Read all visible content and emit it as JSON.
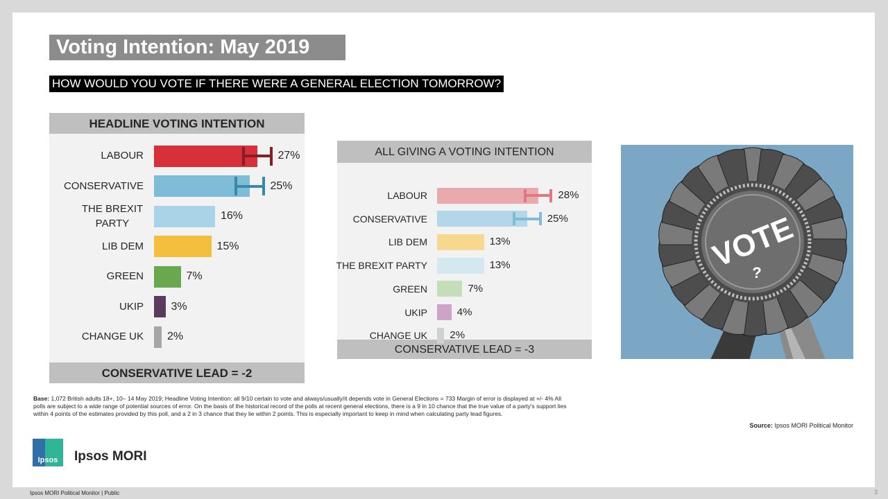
{
  "title": "Voting Intention: May 2019",
  "subtitle": "HOW WOULD YOU VOTE IF THERE WERE A GENERAL ELECTION TOMORROW?",
  "chart_data": [
    {
      "type": "bar",
      "orientation": "horizontal",
      "title": "HEADLINE VOTING INTENTION",
      "footer": "CONSERVATIVE LEAD = -2",
      "categories": [
        "LABOUR",
        "CONSERVATIVE",
        "THE BREXIT PARTY",
        "LIB DEM",
        "GREEN",
        "UKIP",
        "CHANGE UK"
      ],
      "values": [
        27,
        25,
        16,
        15,
        7,
        3,
        2
      ],
      "value_labels": [
        "27%",
        "25%",
        "16%",
        "15%",
        "7%",
        "3%",
        "2%"
      ],
      "colors": [
        "#d7303b",
        "#7fbcd8",
        "#a9d3e6",
        "#f4bf3f",
        "#6aa84f",
        "#5b3a5e",
        "#a6a6a6"
      ],
      "error_bars": [
        {
          "index": 0,
          "low": 23,
          "high": 31,
          "color": "#8a1c24"
        },
        {
          "index": 1,
          "low": 21,
          "high": 29,
          "color": "#3a88ad"
        }
      ],
      "xlim": [
        0,
        40
      ]
    },
    {
      "type": "bar",
      "orientation": "horizontal",
      "title": "ALL GIVING A VOTING INTENTION",
      "footer": "CONSERVATIVE LEAD = -3",
      "categories": [
        "LABOUR",
        "CONSERVATIVE",
        "LIB DEM",
        "THE BREXIT PARTY",
        "GREEN",
        "UKIP",
        "CHANGE UK"
      ],
      "values": [
        28,
        25,
        13,
        13,
        7,
        4,
        2
      ],
      "value_labels": [
        "28%",
        "25%",
        "13%",
        "13%",
        "7%",
        "4%",
        "2%"
      ],
      "colors": [
        "#eaa9ad",
        "#b3d6e8",
        "#f6d98f",
        "#d3e8f1",
        "#c3deb8",
        "#cfa3c8",
        "#d0d0d0"
      ],
      "error_bars": [
        {
          "index": 0,
          "low": 24,
          "high": 32,
          "color": "#e07880"
        },
        {
          "index": 1,
          "low": 21,
          "high": 29,
          "color": "#7fbcd8"
        }
      ],
      "xlim": [
        0,
        40
      ]
    }
  ],
  "image_text": "VOTE",
  "base_label": "Base:",
  "base_text": "1,072 British adults 18+, 10– 14 May 2019; Headline Voting Intention: all 9/10 certain to vote and always/usually/it depends vote in General Elections = 733 Margin of error is displayed at +/- 4% All polls are subject to a wide range of potential sources of error. On the basis of the historical record of the polls at recent general elections, there is a 9 in 10 chance that the true value of a party's support lies within 4 points of the estimates provided by this poll, and a 2 in 3 chance that they lie within 2 points. This is especially important to keep in mind when calculating party lead figures.",
  "source_label": "Source:",
  "source_text": "Ipsos MORI Political Monitor",
  "logo_text": "Ipsos",
  "logo_name": "Ipsos MORI",
  "footer": "Ipsos MORI Political Monitor | Public",
  "page_number": "3"
}
